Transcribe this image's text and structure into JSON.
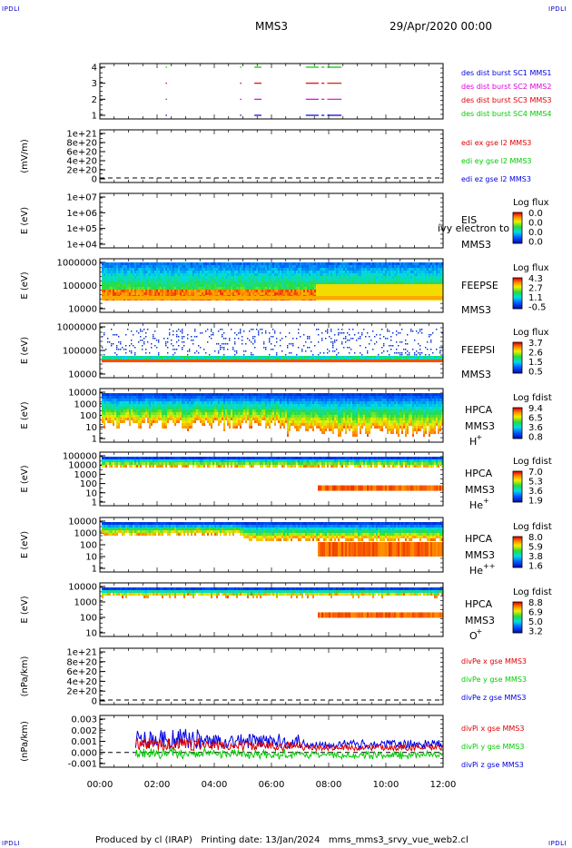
{
  "corners": {
    "tl": "IPDLI",
    "tr": "IPDLI",
    "bl": "IPDLI",
    "br": "IPDLI"
  },
  "header": {
    "spacecraft": "MMS3",
    "date": "29/Apr/2020 00:00"
  },
  "footer": {
    "text": "Produced by cl (IRAP)   Printing date: 13/Jan/2024   mms_mms3_srvy_vue_web2.cl"
  },
  "colors": {
    "red": "#e00000",
    "green": "#00cc00",
    "blue": "#0000e0",
    "magenta": "#e000e0"
  },
  "chart_data": [
    {
      "type": "line",
      "panel": "des_dist_burst",
      "yticks": [
        "4",
        "3",
        "2",
        "1"
      ],
      "series": [
        {
          "name": "des dist burst SC1 MMS1",
          "color": "#0000e0",
          "level": 1,
          "intervals": [
            [
              2.3,
              2.32
            ],
            [
              4.9,
              4.95
            ],
            [
              5.4,
              5.65
            ],
            [
              7.2,
              7.65
            ],
            [
              7.75,
              7.85
            ],
            [
              7.95,
              8.45
            ]
          ]
        },
        {
          "name": "des dist burst SC2 MMS2",
          "color": "#e000e0",
          "level": 2,
          "intervals": [
            [
              2.3,
              2.32
            ],
            [
              4.9,
              4.95
            ],
            [
              5.4,
              5.65
            ],
            [
              7.2,
              7.65
            ],
            [
              7.75,
              7.85
            ],
            [
              7.95,
              8.45
            ]
          ]
        },
        {
          "name": "des dist burst SC3 MMS3",
          "color": "#e00000",
          "level": 3,
          "intervals": [
            [
              2.3,
              2.32
            ],
            [
              4.9,
              4.95
            ],
            [
              5.4,
              5.65
            ],
            [
              7.2,
              7.65
            ],
            [
              7.75,
              7.85
            ],
            [
              7.95,
              8.45
            ]
          ]
        },
        {
          "name": "des dist burst SC4 MMS4",
          "color": "#00cc00",
          "level": 4,
          "intervals": [
            [
              2.3,
              2.32
            ],
            [
              4.9,
              4.95
            ],
            [
              5.4,
              5.65
            ],
            [
              7.2,
              7.65
            ],
            [
              7.75,
              7.85
            ],
            [
              7.95,
              8.45
            ]
          ]
        }
      ]
    },
    {
      "type": "line",
      "panel": "edi_e",
      "ylabel": "(mV/m)",
      "yticks": [
        "1e+21",
        "8e+20",
        "6e+20",
        "4e+20",
        "2e+20",
        "0"
      ],
      "series": [
        {
          "name": "edi ex gse l2 MMS3",
          "color": "#e00000"
        },
        {
          "name": "edi ey gse l2 MMS3",
          "color": "#00cc00"
        },
        {
          "name": "edi ez gse l2 MMS3",
          "color": "#0000e0"
        }
      ]
    },
    {
      "type": "heatmap",
      "panel": "eis",
      "ylabel": "E (eV)",
      "yticks": [
        "1e+07",
        "1e+06",
        "1e+05",
        "1e+04"
      ],
      "labels": [
        "EIS",
        "MMS3"
      ],
      "overlay_text": "ívy electron to",
      "colorbar": {
        "title": "Log flux",
        "ticks": [
          "0.0",
          "0.0",
          "0.0",
          "0.0"
        ]
      }
    },
    {
      "type": "heatmap",
      "panel": "feepse",
      "ylabel": "E (eV)",
      "yticks": [
        "1000000",
        "100000",
        "10000"
      ],
      "labels": [
        "FEEPSE",
        "MMS3"
      ],
      "colorbar": {
        "title": "Log flux",
        "ticks": [
          "4.3",
          "2.7",
          "1.1",
          "-0.5"
        ]
      }
    },
    {
      "type": "heatmap",
      "panel": "feepsi",
      "ylabel": "E (eV)",
      "yticks": [
        "1000000",
        "100000",
        "10000"
      ],
      "labels": [
        "FEEPSI",
        "MMS3"
      ],
      "colorbar": {
        "title": "Log flux",
        "ticks": [
          "3.7",
          "2.6",
          "1.5",
          "0.5"
        ]
      }
    },
    {
      "type": "heatmap",
      "panel": "hpca_h",
      "ylabel": "E (eV)",
      "yticks": [
        "10000",
        "1000",
        "100",
        "10",
        "1"
      ],
      "labels": [
        "HPCA",
        "MMS3"
      ],
      "species": "H",
      "species_sup": "+",
      "colorbar": {
        "title": "Log fdist",
        "ticks": [
          "9.4",
          "6.5",
          "3.6",
          "0.8"
        ]
      }
    },
    {
      "type": "heatmap",
      "panel": "hpca_he",
      "ylabel": "E (eV)",
      "yticks": [
        "100000",
        "10000",
        "1000",
        "100",
        "10",
        "1"
      ],
      "labels": [
        "HPCA",
        "MMS3"
      ],
      "species": "He",
      "species_sup": "+",
      "colorbar": {
        "title": "Log fdist",
        "ticks": [
          "7.0",
          "5.3",
          "3.6",
          "1.9"
        ]
      }
    },
    {
      "type": "heatmap",
      "panel": "hpca_hepp",
      "ylabel": "E (eV)",
      "yticks": [
        "10000",
        "1000",
        "100",
        "10",
        "1"
      ],
      "labels": [
        "HPCA",
        "MMS3"
      ],
      "species": "He",
      "species_sup": "++",
      "colorbar": {
        "title": "Log fdist",
        "ticks": [
          "8.0",
          "5.9",
          "3.8",
          "1.6"
        ]
      }
    },
    {
      "type": "heatmap",
      "panel": "hpca_o",
      "ylabel": "E (eV)",
      "yticks": [
        "10000",
        "1000",
        "100",
        "10"
      ],
      "labels": [
        "HPCA",
        "MMS3"
      ],
      "species": "O",
      "species_sup": "+",
      "colorbar": {
        "title": "Log fdist",
        "ticks": [
          "8.8",
          "6.9",
          "5.0",
          "3.2"
        ]
      }
    },
    {
      "type": "line",
      "panel": "divpe",
      "ylabel": "(nPa/km)",
      "yticks": [
        "1e+21",
        "8e+20",
        "6e+20",
        "4e+20",
        "2e+20",
        "0"
      ],
      "series": [
        {
          "name": "divPe x gse MMS3",
          "color": "#e00000"
        },
        {
          "name": "divPe y gse MMS3",
          "color": "#00cc00"
        },
        {
          "name": "divPe z gse MMS3",
          "color": "#0000e0"
        }
      ]
    },
    {
      "type": "line",
      "panel": "divpi",
      "ylabel": "(nPa/km)",
      "yticks": [
        "0.003",
        "0.002",
        "0.001",
        "0.000",
        "-0.001"
      ],
      "xticks": [
        "00:00",
        "02:00",
        "04:00",
        "06:00",
        "08:00",
        "10:00",
        "12:00"
      ],
      "series": [
        {
          "name": "divPi x gse MMS3",
          "color": "#e00000"
        },
        {
          "name": "divPi y gse MMS3",
          "color": "#00cc00"
        },
        {
          "name": "divPi z gse MMS3",
          "color": "#0000e0"
        }
      ]
    }
  ]
}
